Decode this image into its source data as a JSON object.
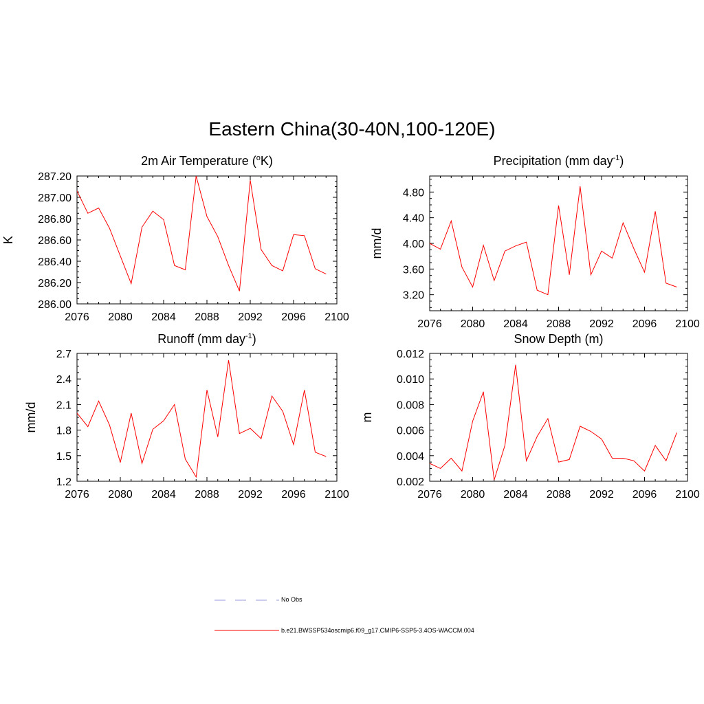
{
  "title": "Eastern China(30-40N,100-120E)",
  "legend": {
    "entries": [
      {
        "label": "No Obs",
        "color": "#9a9adc",
        "style": "dashed"
      },
      {
        "label": "b.e21.BWSSP534oscmip6.f09_g17.CMIP6-SSP5-3.4OS-WACCM.004",
        "color": "#ff0000",
        "style": "solid"
      }
    ]
  },
  "chart_data": [
    {
      "type": "line",
      "title_main": "2m Air Temperature (",
      "title_sup": "o",
      "title_tail": "K)",
      "ylabel": "K",
      "xlim": [
        2076,
        2100
      ],
      "ylim": [
        286.0,
        287.2
      ],
      "xticks": [
        2076,
        2080,
        2084,
        2088,
        2092,
        2096,
        2100
      ],
      "xtick_labels": [
        "2076",
        "2080",
        "2084",
        "2088",
        "2092",
        "2096",
        "2100"
      ],
      "yticks": [
        286.0,
        286.2,
        286.4,
        286.6,
        286.8,
        287.0,
        287.2
      ],
      "ytick_labels": [
        "286.00",
        "286.20",
        "286.40",
        "286.60",
        "286.80",
        "287.00",
        "287.20"
      ],
      "series": [
        {
          "name": "b.e21.BWSSP534oscmip6.f09_g17.CMIP6-SSP5-3.4OS-WACCM.004",
          "color": "#ff0000",
          "x": [
            2076,
            2077,
            2078,
            2079,
            2080,
            2081,
            2082,
            2083,
            2084,
            2085,
            2086,
            2087,
            2088,
            2089,
            2090,
            2091,
            2092,
            2093,
            2094,
            2095,
            2096,
            2097,
            2098,
            2099
          ],
          "y": [
            287.06,
            286.85,
            286.9,
            286.71,
            286.45,
            286.19,
            286.72,
            286.87,
            286.79,
            286.36,
            286.32,
            287.2,
            286.82,
            286.63,
            286.36,
            286.12,
            287.16,
            286.51,
            286.36,
            286.31,
            286.65,
            286.64,
            286.33,
            286.28
          ]
        }
      ]
    },
    {
      "type": "line",
      "title_main": "Precipitation (mm day",
      "title_sup": "-1",
      "title_tail": ")",
      "ylabel": "mm/d",
      "xlim": [
        2076,
        2100
      ],
      "ylim": [
        2.95,
        5.05
      ],
      "xticks": [
        2076,
        2080,
        2084,
        2088,
        2092,
        2096,
        2100
      ],
      "xtick_labels": [
        "2076",
        "2080",
        "2084",
        "2088",
        "2092",
        "2096",
        "2100"
      ],
      "yticks": [
        3.2,
        3.6,
        4.0,
        4.4,
        4.8
      ],
      "ytick_labels": [
        "3.20",
        "3.60",
        "4.00",
        "4.40",
        "4.80"
      ],
      "series": [
        {
          "name": "b.e21.BWSSP534oscmip6.f09_g17.CMIP6-SSP5-3.4OS-WACCM.004",
          "color": "#ff0000",
          "x": [
            2076,
            2077,
            2078,
            2079,
            2080,
            2081,
            2082,
            2083,
            2084,
            2085,
            2086,
            2087,
            2088,
            2089,
            2090,
            2091,
            2092,
            2093,
            2094,
            2095,
            2096,
            2097,
            2098,
            2099
          ],
          "y": [
            4.0,
            3.91,
            4.35,
            3.63,
            3.32,
            3.97,
            3.42,
            3.88,
            3.96,
            4.02,
            3.27,
            3.2,
            4.59,
            3.51,
            4.89,
            3.51,
            3.88,
            3.77,
            4.32,
            3.92,
            3.55,
            4.5,
            3.38,
            3.32
          ]
        }
      ]
    },
    {
      "type": "line",
      "title_main": "Runoff (mm day",
      "title_sup": "-1",
      "title_tail": ")",
      "ylabel": "mm/d",
      "xlim": [
        2076,
        2100
      ],
      "ylim": [
        1.2,
        2.7
      ],
      "xticks": [
        2076,
        2080,
        2084,
        2088,
        2092,
        2096,
        2100
      ],
      "xtick_labels": [
        "2076",
        "2080",
        "2084",
        "2088",
        "2092",
        "2096",
        "2100"
      ],
      "yticks": [
        1.2,
        1.5,
        1.8,
        2.1,
        2.4,
        2.7
      ],
      "ytick_labels": [
        "1.2",
        "1.5",
        "1.8",
        "2.1",
        "2.4",
        "2.7"
      ],
      "series": [
        {
          "name": "b.e21.BWSSP534oscmip6.f09_g17.CMIP6-SSP5-3.4OS-WACCM.004",
          "color": "#ff0000",
          "x": [
            2076,
            2077,
            2078,
            2079,
            2080,
            2081,
            2082,
            2083,
            2084,
            2085,
            2086,
            2087,
            2088,
            2089,
            2090,
            2091,
            2092,
            2093,
            2094,
            2095,
            2096,
            2097,
            2098,
            2099
          ],
          "y": [
            2.0,
            1.84,
            2.14,
            1.86,
            1.42,
            2.0,
            1.41,
            1.81,
            1.91,
            2.1,
            1.46,
            1.25,
            2.27,
            1.72,
            2.62,
            1.76,
            1.82,
            1.7,
            2.2,
            2.02,
            1.63,
            2.27,
            1.54,
            1.49
          ]
        }
      ]
    },
    {
      "type": "line",
      "title_main": "Snow Depth (m)",
      "title_sup": "",
      "title_tail": "",
      "ylabel": "m",
      "xlim": [
        2076,
        2100
      ],
      "ylim": [
        0.002,
        0.012
      ],
      "xticks": [
        2076,
        2080,
        2084,
        2088,
        2092,
        2096,
        2100
      ],
      "xtick_labels": [
        "2076",
        "2080",
        "2084",
        "2088",
        "2092",
        "2096",
        "2100"
      ],
      "yticks": [
        0.002,
        0.004,
        0.006,
        0.008,
        0.01,
        0.012
      ],
      "ytick_labels": [
        "0.002",
        "0.004",
        "0.006",
        "0.008",
        "0.010",
        "0.012"
      ],
      "series": [
        {
          "name": "b.e21.BWSSP534oscmip6.f09_g17.CMIP6-SSP5-3.4OS-WACCM.004",
          "color": "#ff0000",
          "x": [
            2076,
            2077,
            2078,
            2079,
            2080,
            2081,
            2082,
            2083,
            2084,
            2085,
            2086,
            2087,
            2088,
            2089,
            2090,
            2091,
            2092,
            2093,
            2094,
            2095,
            2096,
            2097,
            2098,
            2099
          ],
          "y": [
            0.0034,
            0.003,
            0.0038,
            0.0028,
            0.0067,
            0.009,
            0.0021,
            0.0048,
            0.0111,
            0.0036,
            0.0055,
            0.0069,
            0.0035,
            0.0037,
            0.0063,
            0.0059,
            0.0053,
            0.0038,
            0.0038,
            0.0036,
            0.0028,
            0.0048,
            0.0036,
            0.0058
          ]
        }
      ]
    }
  ]
}
